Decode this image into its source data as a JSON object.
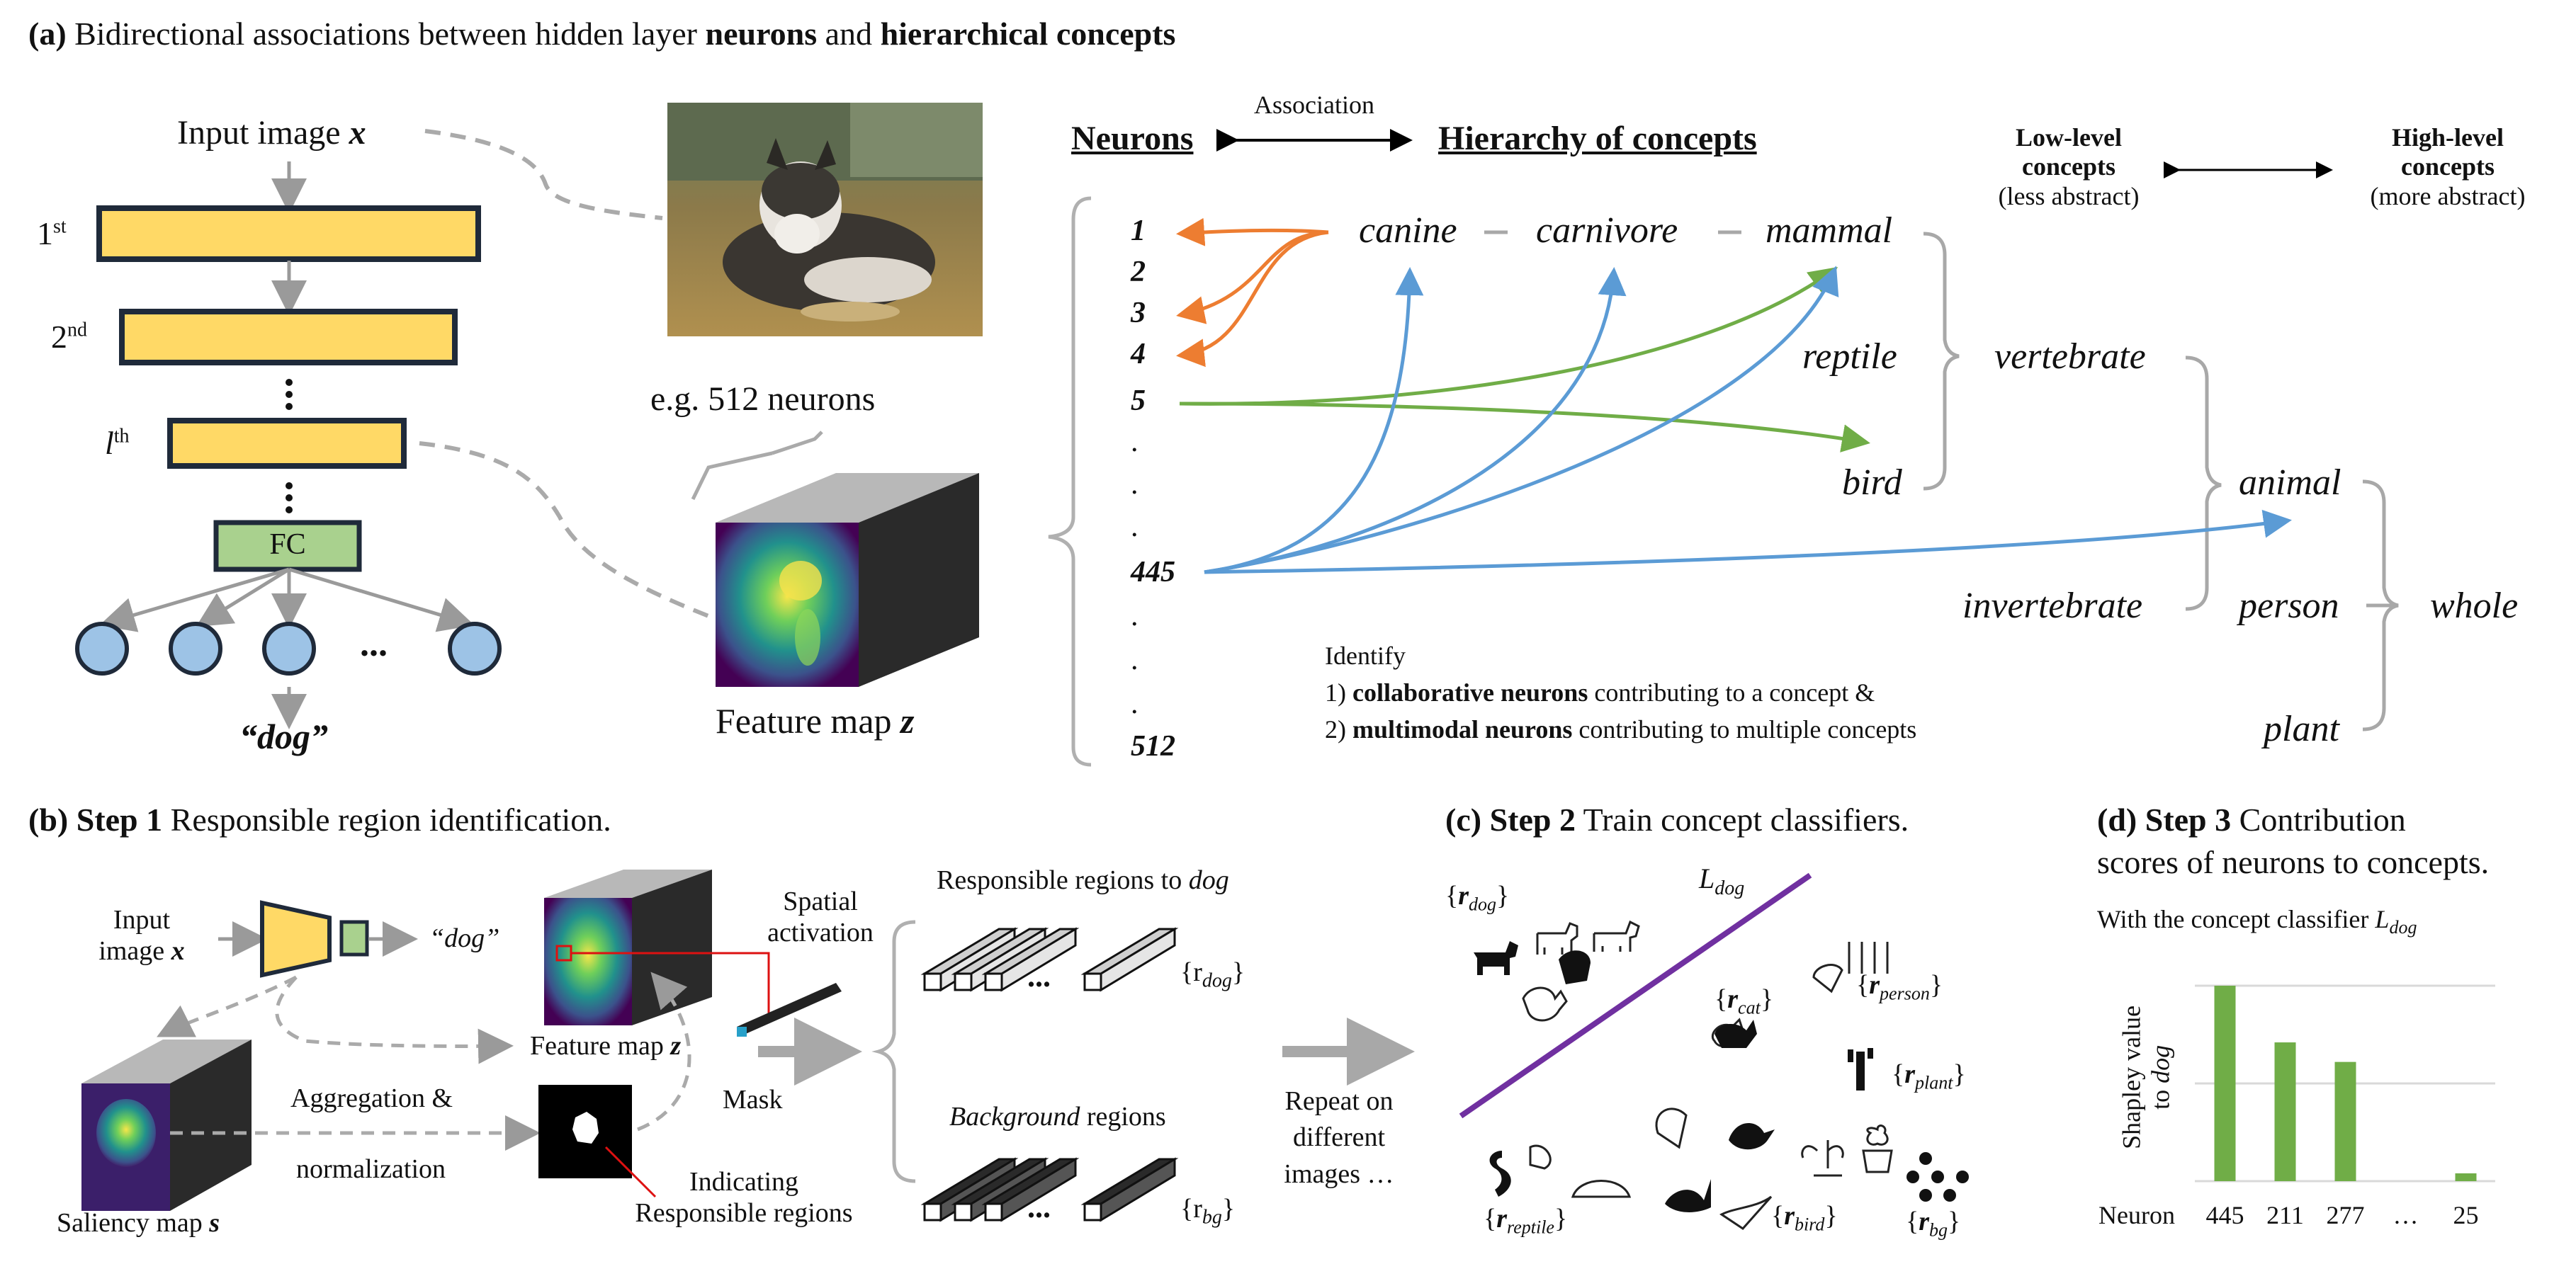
{
  "panel_a": {
    "title_prefix": "(a)",
    "title_text": "Bidirectional associations between hidden layer",
    "title_bold1": "neurons",
    "title_and": "and",
    "title_bold2": "hierarchical concepts",
    "input_label": "Input image",
    "input_var": "x",
    "layer1": "1",
    "layer1_sup": "st",
    "layer2": "2",
    "layer2_sup": "nd",
    "layerl": "l",
    "layerl_sup": "th",
    "fc_label": "FC",
    "output_label": "“dog”",
    "ellipsis": "...",
    "neurons_note": "e.g. 512 neurons",
    "feature_map_label": "Feature map",
    "feature_map_var": "z",
    "association_label": "Association",
    "neurons_header": "Neurons",
    "concepts_header": "Hierarchy of concepts",
    "low_level": "Low-level",
    "low_level2": "concepts",
    "low_level3": "(less abstract)",
    "high_level": "High-level",
    "high_level2": "concepts",
    "high_level3": "(more abstract)",
    "neuron_ids": [
      "1",
      "2",
      "3",
      "4",
      "5",
      "445",
      "512"
    ],
    "dot": ".",
    "concepts": {
      "canine": "canine",
      "carnivore": "carnivore",
      "mammal": "mammal",
      "reptile": "reptile",
      "bird": "bird",
      "vertebrate": "vertebrate",
      "invertebrate": "invertebrate",
      "animal": "animal",
      "person": "person",
      "plant": "plant",
      "whole": "whole"
    },
    "identify": "Identify",
    "identify1_prefix": "1)",
    "identify1_bold": "collaborative neurons",
    "identify1_rest": "contributing to a concept &",
    "identify2_prefix": "2)",
    "identify2_bold": "multimodal neurons",
    "identify2_rest": "contributing to multiple concepts",
    "colors": {
      "orange": "#ED7D31",
      "blue": "#5B9BD5",
      "green": "#70AD47",
      "yellow": "#FFD966",
      "fc_green": "#A9D18E",
      "node_blue": "#9DC3E6"
    }
  },
  "panel_b": {
    "title_prefix": "(b)",
    "title_bold": "Step 1",
    "title_text": "Responsible region identification.",
    "input_label": "Input",
    "input_label2": "image",
    "input_var": "x",
    "output_label": "“dog”",
    "feature_map_label": "Feature map",
    "feature_map_var": "z",
    "spatial": "Spatial",
    "activation": "activation",
    "saliency_label": "Saliency map",
    "saliency_var": "s",
    "aggregation": "Aggregation &",
    "normalization": "normalization",
    "mask": "Mask",
    "indicating": "Indicating",
    "responsible_regions": "Responsible regions",
    "resp_regions_title": "Responsible regions to",
    "resp_regions_title_it": "dog",
    "background_title_it": "Background",
    "background_title": "regions",
    "r_dog": "{r",
    "r_dog_sub": "dog",
    "r_bg_sub": "bg",
    "ellipsis": "...",
    "repeat1": "Repeat on",
    "repeat2": "different",
    "repeat3": "images …"
  },
  "panel_c": {
    "title_prefix": "(c)",
    "title_bold": "Step 2",
    "title_text": "Train concept classifiers.",
    "l_dog": "L",
    "l_dog_sub": "dog",
    "sets": {
      "dog": "dog",
      "person": "person",
      "cat": "cat",
      "plant": "plant",
      "reptile": "reptile",
      "bird": "bird",
      "bg": "bg"
    },
    "r": "r",
    "colors": {
      "separator": "#7030A0"
    }
  },
  "panel_d": {
    "title_prefix": "(d)",
    "title_bold": "Step 3",
    "title_text": "Contribution",
    "title_line2": "scores of neurons to concepts.",
    "subtitle": "With the concept classifier",
    "subtitle_l": "L",
    "subtitle_sub": "dog",
    "axis_label": "Neuron",
    "ylabel1": "Shapley value",
    "ylabel2": "to",
    "ylabel2_it": "dog",
    "colors": {
      "bar": "#70AD47"
    }
  },
  "chart_data": {
    "type": "bar",
    "categories": [
      "445",
      "211",
      "277",
      "…",
      "25"
    ],
    "values": [
      1.0,
      0.71,
      0.61,
      null,
      0.04
    ],
    "xlabel": "Neuron",
    "ylabel": "Shapley value to dog",
    "ylim": [
      0,
      1.0
    ],
    "grid": true
  }
}
